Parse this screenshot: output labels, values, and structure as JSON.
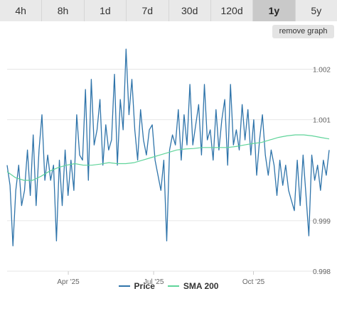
{
  "tabs": [
    {
      "label": "4h",
      "active": false
    },
    {
      "label": "8h",
      "active": false
    },
    {
      "label": "1d",
      "active": false
    },
    {
      "label": "7d",
      "active": false
    },
    {
      "label": "30d",
      "active": false
    },
    {
      "label": "120d",
      "active": false
    },
    {
      "label": "1y",
      "active": true
    },
    {
      "label": "5y",
      "active": false
    }
  ],
  "remove_graph_label": "remove graph",
  "colors": {
    "price": "#2f74aa",
    "sma": "#5fd49a",
    "grid": "#e6e6e6",
    "axis_label": "#666666",
    "active_tab": "#c9c9c9"
  },
  "chart_data": {
    "type": "line",
    "xlabel": "",
    "ylabel": "",
    "x_ticks": [
      "Apr '25",
      "Jul '25",
      "Oct '25"
    ],
    "y_ticks": [
      0.998,
      0.999,
      1.001,
      1.002
    ],
    "ylim": [
      0.998,
      1.0025
    ],
    "grid": true,
    "legend_position": "bottom-center",
    "series": [
      {
        "name": "Price",
        "values": [
          1.0001,
          0.9997,
          0.9985,
          0.9996,
          1.0001,
          0.9993,
          0.9996,
          1.0004,
          0.9995,
          1.0007,
          0.9993,
          1.0004,
          1.0011,
          0.9998,
          1.0003,
          0.9998,
          1.0001,
          0.9986,
          1.0002,
          0.9993,
          1.0004,
          0.9995,
          1.0002,
          0.9996,
          1.0011,
          1.0003,
          1.0002,
          1.0016,
          0.9998,
          1.0018,
          1.0005,
          1.0008,
          1.0014,
          1.0001,
          1.0009,
          1.0004,
          1.0006,
          1.0019,
          1.0001,
          1.0014,
          1.0008,
          1.0024,
          1.0011,
          1.0018,
          1.0008,
          1.0002,
          1.0012,
          1.0006,
          1.0003,
          1.0008,
          1.0009,
          1.0002,
          0.9999,
          0.9996,
          1.0002,
          0.9986,
          1.0004,
          1.0007,
          1.0005,
          1.0012,
          1.0002,
          1.0011,
          1.0005,
          1.0017,
          1.0005,
          1.0009,
          1.0013,
          1.0003,
          1.0017,
          1.0006,
          1.0008,
          1.0002,
          1.0012,
          1.0004,
          1.001,
          1.0014,
          1.0001,
          1.0017,
          1.0005,
          1.0008,
          1.0004,
          1.0013,
          1.0006,
          1.0012,
          1.0003,
          1.001,
          0.9999,
          1.0006,
          1.0011,
          1.0003,
          0.9999,
          1.0004,
          1.0001,
          0.9995,
          1.0002,
          0.9997,
          1.0001,
          0.9996,
          0.9994,
          0.9992,
          1.0002,
          0.9993,
          1.0003,
          0.9995,
          0.9987,
          1.0003,
          0.9998,
          1.0001,
          0.9996,
          1.0002,
          0.9999,
          1.0004
        ]
      },
      {
        "name": "SMA 200",
        "values": [
          0.99997,
          0.99985,
          0.9998,
          0.9998,
          0.99988,
          0.99998,
          1.00005,
          1.0001,
          1.00013,
          1.0001,
          1.0001,
          1.00012,
          1.00015,
          1.00013,
          1.00013,
          1.00015,
          1.0002,
          1.00025,
          1.0003,
          1.00035,
          1.0004,
          1.00042,
          1.00043,
          1.00045,
          1.00045,
          1.00045,
          1.00045,
          1.00047,
          1.0005,
          1.00053,
          1.00055,
          1.0006,
          1.00065,
          1.00068,
          1.0007,
          1.0007,
          1.00068,
          1.00065,
          1.00062
        ]
      }
    ]
  }
}
